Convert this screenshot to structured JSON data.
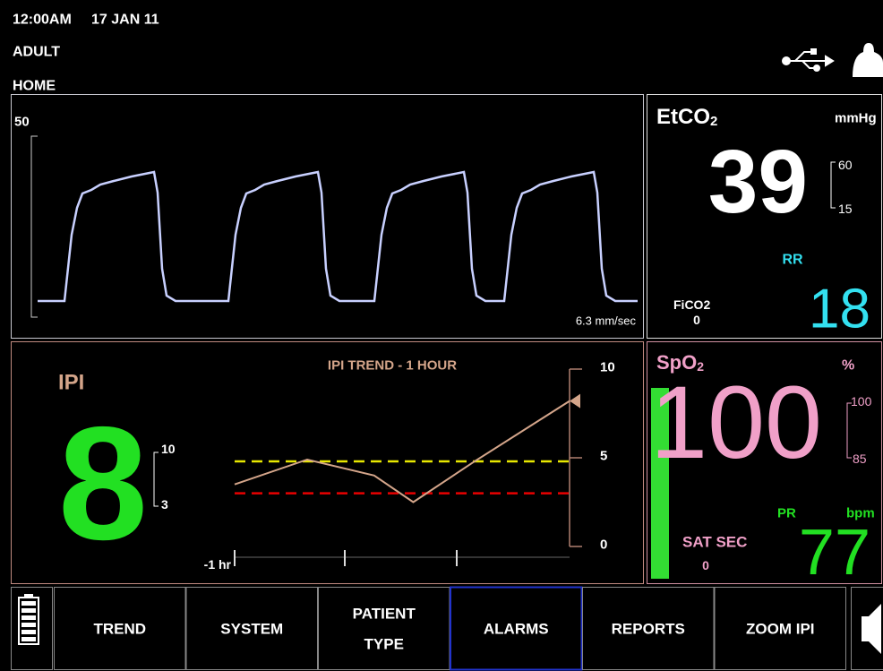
{
  "status": {
    "time": "12:00AM",
    "date": "17 JAN 11",
    "patient_type": "ADULT",
    "screen": "HOME"
  },
  "waveform": {
    "scale_max": 50,
    "sweep_speed": "6.3 mm/sec"
  },
  "etco2": {
    "label": "EtCO",
    "label_subscript": "2",
    "unit": "mmHg",
    "value": 39,
    "alarm_high": 60,
    "alarm_low": 15,
    "rr_label": "RR",
    "rr_value": 18,
    "fico2_label": "FiCO2",
    "fico2_value": 0
  },
  "ipi": {
    "label": "IPI",
    "value": 8,
    "alarm_high": 10,
    "alarm_low": 3
  },
  "chart_data": {
    "type": "line",
    "title": "IPI TREND - 1 HOUR",
    "x_label": "-1 hr",
    "x": [
      -60,
      -47,
      -35,
      -28,
      -17,
      0
    ],
    "xlim": [
      -60,
      0
    ],
    "series": [
      {
        "color": "#d4a58a",
        "values": [
          3.5,
          4.9,
          4.0,
          2.5,
          4.8,
          8.2
        ]
      }
    ],
    "ylim": [
      0,
      10
    ],
    "yticks": [
      0,
      5,
      10
    ],
    "thresholds": [
      {
        "value": 4.8,
        "color": "#e8e800"
      },
      {
        "value": 3,
        "color": "#e80000"
      }
    ]
  },
  "spo2": {
    "label": "SpO",
    "label_subscript": "2",
    "unit": "%",
    "value": 100,
    "alarm_high": 100,
    "alarm_low": 85,
    "pr_label": "PR",
    "pr_unit": "bpm",
    "pr_value": 77,
    "sat_sec_label": "SAT SEC",
    "sat_sec_value": 0
  },
  "menu": {
    "buttons": [
      [
        "TREND"
      ],
      [
        "SYSTEM"
      ],
      [
        "PATIENT",
        "TYPE"
      ],
      [
        "ALARMS"
      ],
      [
        "REPORTS"
      ],
      [
        "ZOOM IPI"
      ]
    ],
    "selected": 3
  }
}
